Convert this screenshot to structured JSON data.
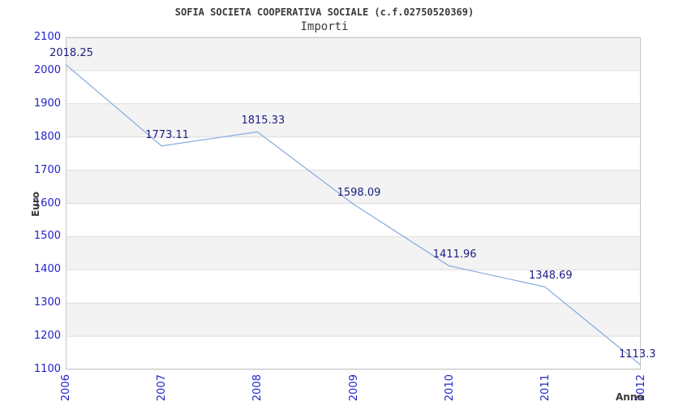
{
  "header": {
    "title": "SOFIA SOCIETA COOPERATIVA SOCIALE (c.f.02750520369)",
    "subtitle": "Importi"
  },
  "chart_data": {
    "type": "line",
    "x": [
      2006,
      2007,
      2008,
      2009,
      2010,
      2011,
      2012
    ],
    "xticks": [
      "2006",
      "2007",
      "2008",
      "2009",
      "2010",
      "2011",
      "2012"
    ],
    "values": [
      2018.25,
      1773.11,
      1815.33,
      1598.09,
      1411.96,
      1348.69,
      1113.3
    ],
    "point_labels": [
      "2018.25",
      "1773.11",
      "1815.33",
      "1598.09",
      "1411.96",
      "1348.69",
      "1113.3"
    ],
    "title": "SOFIA SOCIETA COOPERATIVA SOCIALE (c.f.02750520369)",
    "subtitle": "Importi",
    "xlabel": "Anno",
    "ylabel": "Euro",
    "xlim": [
      2006,
      2012
    ],
    "ylim": [
      1100,
      2100
    ],
    "ytick_step": 100,
    "grid": "horizontal-bands-alternating",
    "legend_position": "none",
    "colors": {
      "line": "#84abdd",
      "axis_tick_label": "#2222cc",
      "point_label": "#1c1c82",
      "band_fill": "#f3f3f3",
      "gridline": "#dddddd",
      "plot_border": "#c6c6c6",
      "heading_text": "#3a3a3a"
    }
  }
}
